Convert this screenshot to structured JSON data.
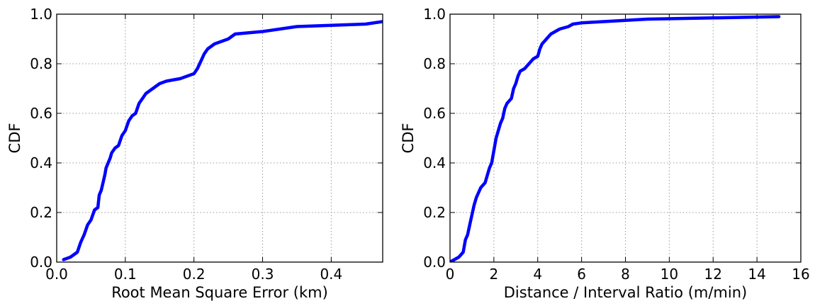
{
  "chart_data": [
    {
      "type": "line",
      "title": "",
      "xlabel": "Root Mean Square Error (km)",
      "ylabel": "CDF",
      "xlim": [
        0,
        0.475
      ],
      "ylim": [
        0,
        1
      ],
      "xticks": [
        0,
        0.1,
        0.2,
        0.3,
        0.4
      ],
      "xtick_labels": [
        "0.0",
        "0.1",
        "0.2",
        "0.3",
        "0.4"
      ],
      "yticks": [
        0,
        0.2,
        0.4,
        0.6,
        0.8,
        1.0
      ],
      "ytick_labels": [
        "0.0",
        "0.2",
        "0.4",
        "0.6",
        "0.8",
        "1.0"
      ],
      "grid": true,
      "color": "#0000ff",
      "series": [
        {
          "x": [
            0.01,
            0.02,
            0.03,
            0.035,
            0.04,
            0.045,
            0.05,
            0.055,
            0.06,
            0.062,
            0.065,
            0.07,
            0.072,
            0.075,
            0.078,
            0.08,
            0.085,
            0.09,
            0.095,
            0.1,
            0.105,
            0.11,
            0.115,
            0.12,
            0.125,
            0.13,
            0.14,
            0.15,
            0.16,
            0.18,
            0.2,
            0.205,
            0.21,
            0.215,
            0.22,
            0.23,
            0.25,
            0.26,
            0.3,
            0.35,
            0.4,
            0.45,
            0.475
          ],
          "y": [
            0.01,
            0.02,
            0.04,
            0.08,
            0.11,
            0.15,
            0.17,
            0.21,
            0.22,
            0.27,
            0.29,
            0.35,
            0.38,
            0.4,
            0.42,
            0.44,
            0.46,
            0.47,
            0.51,
            0.53,
            0.57,
            0.59,
            0.6,
            0.64,
            0.66,
            0.68,
            0.7,
            0.72,
            0.73,
            0.74,
            0.76,
            0.78,
            0.81,
            0.84,
            0.86,
            0.88,
            0.9,
            0.92,
            0.93,
            0.95,
            0.955,
            0.96,
            0.97
          ]
        }
      ]
    },
    {
      "type": "line",
      "title": "",
      "xlabel": "Distance / Interval Ratio (m/min)",
      "ylabel": "CDF",
      "xlim": [
        0,
        16
      ],
      "ylim": [
        0,
        1
      ],
      "xticks": [
        0,
        2,
        4,
        6,
        8,
        10,
        12,
        14,
        16
      ],
      "xtick_labels": [
        "0",
        "2",
        "4",
        "6",
        "8",
        "10",
        "12",
        "14",
        "16"
      ],
      "yticks": [
        0,
        0.2,
        0.4,
        0.6,
        0.8,
        1.0
      ],
      "ytick_labels": [
        "0.0",
        "0.2",
        "0.4",
        "0.6",
        "0.8",
        "1.0"
      ],
      "grid": true,
      "color": "#0000ff",
      "series": [
        {
          "x": [
            0,
            0.2,
            0.4,
            0.6,
            0.7,
            0.8,
            0.9,
            1.0,
            1.1,
            1.2,
            1.4,
            1.5,
            1.6,
            1.8,
            1.9,
            2.0,
            2.1,
            2.2,
            2.3,
            2.4,
            2.5,
            2.6,
            2.8,
            2.9,
            3.0,
            3.1,
            3.2,
            3.4,
            3.6,
            3.8,
            4.0,
            4.1,
            4.2,
            4.4,
            4.6,
            5.0,
            5.4,
            5.6,
            6.0,
            7.0,
            8.0,
            9.0,
            12.0,
            15.0
          ],
          "y": [
            0.0,
            0.01,
            0.02,
            0.04,
            0.09,
            0.11,
            0.15,
            0.19,
            0.23,
            0.26,
            0.3,
            0.31,
            0.32,
            0.38,
            0.4,
            0.45,
            0.5,
            0.53,
            0.56,
            0.58,
            0.62,
            0.64,
            0.66,
            0.7,
            0.72,
            0.75,
            0.77,
            0.78,
            0.8,
            0.82,
            0.83,
            0.86,
            0.88,
            0.9,
            0.92,
            0.94,
            0.95,
            0.96,
            0.965,
            0.97,
            0.975,
            0.98,
            0.985,
            0.99
          ]
        }
      ]
    }
  ]
}
